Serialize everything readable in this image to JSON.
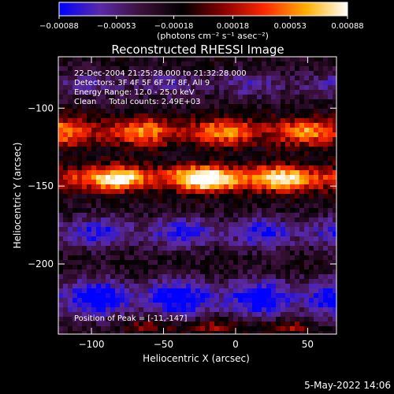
{
  "chart_data": {
    "type": "heatmap",
    "title": "Reconstructed RHESSI Image",
    "xlabel": "Heliocentric X (arcsec)",
    "ylabel": "Heliocentric Y (arcsec)",
    "xlim": [
      -123,
      70
    ],
    "ylim": [
      -245,
      -67
    ],
    "xticks": [
      -100,
      -50,
      0,
      50
    ],
    "yticks": [
      -100,
      -150,
      -200
    ],
    "xtick_labels": [
      "−100",
      "−50",
      "0",
      "50"
    ],
    "ytick_labels": [
      "−100",
      "−150",
      "−200"
    ],
    "colorbar": {
      "range": [
        -0.00088,
        0.00088
      ],
      "ticks": [
        -0.00088,
        -0.00053,
        -0.00018,
        0.00018,
        0.00053,
        0.00088
      ],
      "tick_labels": [
        "−0.00088",
        "−0.00053",
        "−0.00018",
        "0.00018",
        "0.00053",
        "0.00088"
      ],
      "unit_label": "(photons cm⁻² s⁻¹ asec⁻²)",
      "colors": [
        "#0000ff",
        "#5a2aa8",
        "#3b1038",
        "#000000",
        "#8a0000",
        "#ff2a00",
        "#ffb000",
        "#ffffff"
      ]
    },
    "annotations": [
      "22-Dec-2004 21:25:28.000 to 21:32:28.000",
      "Detectors: 3F 4F 5F 6F 7F 8F, All 9",
      "Energy Range: 12.0 - 25.0 keV",
      "Clean     Total counts: 2.49E+03"
    ],
    "peak_label": "Position of Peak = [-11,-147]",
    "peak": [
      -11,
      -147
    ],
    "bands": [
      {
        "y": -115,
        "x0": -125,
        "x1": 70,
        "amp": 0.00058,
        "width": 9,
        "note": "upper bright band"
      },
      {
        "y": -145,
        "x0": -110,
        "x1": 60,
        "amp": 0.00085,
        "width": 8,
        "note": "central peak band"
      },
      {
        "y": -180,
        "x0": -125,
        "x1": 70,
        "amp": -0.00045,
        "width": 10,
        "note": "lower dark band"
      },
      {
        "y": -222,
        "x0": -125,
        "x1": 70,
        "amp": -0.0006,
        "width": 12,
        "note": "bottom blue band"
      },
      {
        "y": -240,
        "x0": -60,
        "x1": 40,
        "amp": 0.0003,
        "width": 4,
        "note": "bottom edge bright band"
      },
      {
        "y": -85,
        "x0": -125,
        "x1": 70,
        "amp": -0.00028,
        "width": 9,
        "note": "top purple band"
      }
    ]
  },
  "footer_timestamp": "5-May-2022 14:06"
}
